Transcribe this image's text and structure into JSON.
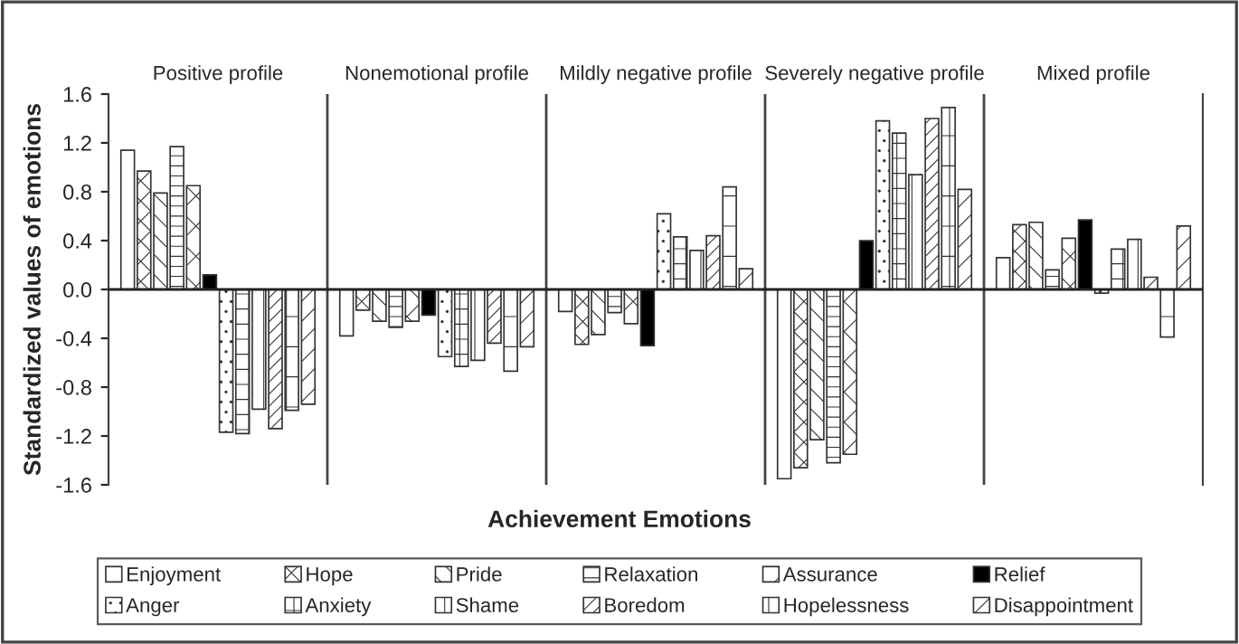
{
  "chart_data": {
    "type": "bar",
    "xlabel": "Achievement Emotions",
    "ylabel": "Standardized values of emotions",
    "categories": [
      "Positive profile",
      "Nonemotional profile",
      "Mildly negative profile",
      "Severely negative profile",
      "Mixed profile"
    ],
    "series": [
      {
        "name": "Enjoyment",
        "color": "#ffffff",
        "values": [
          1.14,
          -0.38,
          -0.18,
          -1.55,
          0.26
        ]
      },
      {
        "name": "Hope",
        "color": "#333333",
        "values": [
          0.97,
          -0.17,
          -0.45,
          -1.46,
          0.53
        ]
      },
      {
        "name": "Pride",
        "color": "#333333",
        "values": [
          0.79,
          -0.26,
          -0.37,
          -1.23,
          0.55
        ]
      },
      {
        "name": "Relaxation",
        "color": "#333333",
        "values": [
          1.17,
          -0.31,
          -0.19,
          -1.42,
          0.16
        ]
      },
      {
        "name": "Assurance",
        "color": "#333333",
        "values": [
          0.85,
          -0.26,
          -0.28,
          -1.35,
          0.42
        ]
      },
      {
        "name": "Relief",
        "color": "#000000",
        "values": [
          0.12,
          -0.21,
          -0.46,
          0.4,
          0.57
        ]
      },
      {
        "name": "Anger",
        "color": "#333333",
        "values": [
          -1.17,
          -0.55,
          0.62,
          1.38,
          -0.03
        ]
      },
      {
        "name": "Anxiety",
        "color": "#333333",
        "values": [
          -1.18,
          -0.63,
          0.43,
          1.28,
          0.33
        ]
      },
      {
        "name": "Shame",
        "color": "#333333",
        "values": [
          -0.98,
          -0.58,
          0.32,
          0.94,
          0.41
        ]
      },
      {
        "name": "Boredom",
        "color": "#333333",
        "values": [
          -1.14,
          -0.44,
          0.44,
          1.4,
          0.1
        ]
      },
      {
        "name": "Hopelessness",
        "color": "#333333",
        "values": [
          -0.99,
          -0.67,
          0.84,
          1.49,
          -0.39
        ]
      },
      {
        "name": "Disappointment",
        "color": "#333333",
        "values": [
          -0.94,
          -0.47,
          0.17,
          0.82,
          0.52
        ]
      }
    ],
    "ylim": [
      -1.6,
      1.6
    ],
    "yticks": [
      -1.6,
      -1.2,
      -0.8,
      -0.4,
      {
        "value": 0,
        "label": "0.0"
      },
      0.4,
      0.8,
      1.2,
      1.6
    ],
    "grid": false,
    "legend": "bottom"
  }
}
